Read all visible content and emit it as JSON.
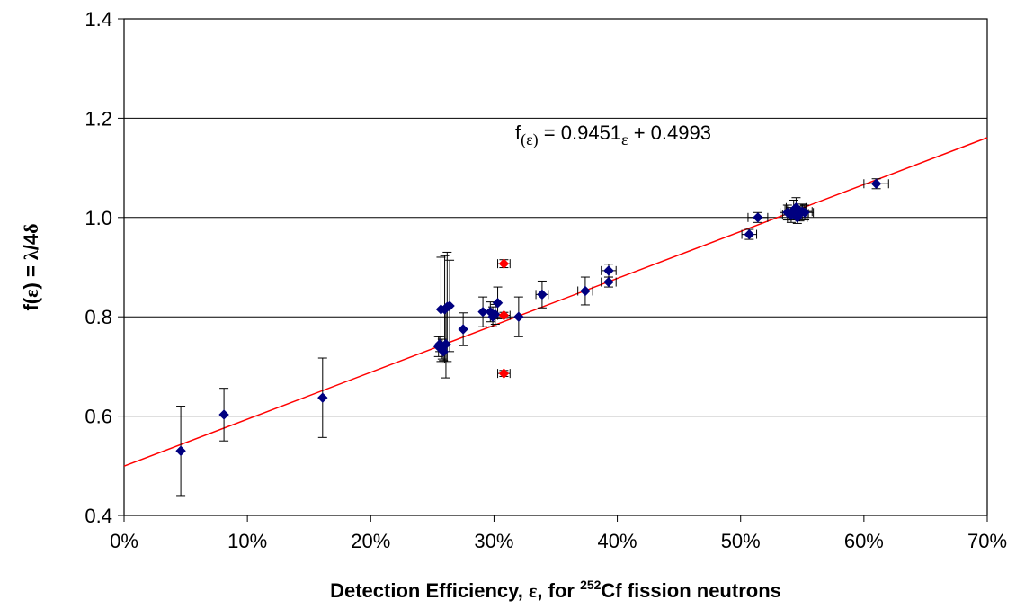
{
  "chart_data": {
    "type": "scatter",
    "title": "",
    "xlabel_parts": {
      "pre": "Detection Efficiency, ",
      "epsilon": "ε",
      "mid": ", for ",
      "sup": "252",
      "post": "Cf fission neutrons"
    },
    "ylabel_parts": {
      "f": "f(",
      "epsilon": "ε",
      "rest": ") = ",
      "lambda": "λ",
      "div": "/4",
      "delta": "δ"
    },
    "equation_parts": {
      "f": "f",
      "sub": "(ε)",
      "mid": " = 0.9451",
      "eps": "ε",
      "end": " + 0.4993"
    },
    "xlim": [
      0,
      0.7
    ],
    "ylim": [
      0.4,
      1.4
    ],
    "x_ticks": [
      0,
      0.1,
      0.2,
      0.3,
      0.4,
      0.5,
      0.6,
      0.7
    ],
    "x_tick_labels": [
      "0%",
      "10%",
      "20%",
      "30%",
      "40%",
      "50%",
      "60%",
      "70%"
    ],
    "y_ticks": [
      0.4,
      0.6,
      0.8,
      1.0,
      1.2,
      1.4
    ],
    "y_tick_labels": [
      "0.4",
      "0.6",
      "0.8",
      "1.0",
      "1.2",
      "1.4"
    ],
    "grid": "horizontal",
    "fit": {
      "slope": 0.9451,
      "intercept": 0.4993,
      "color": "#ff0000"
    },
    "series": [
      {
        "color": "#000080",
        "points": [
          {
            "x": 0.046,
            "y": 0.53,
            "yerr": 0.09
          },
          {
            "x": 0.081,
            "y": 0.603,
            "yerr": 0.053
          },
          {
            "x": 0.161,
            "y": 0.637,
            "yerr": 0.08
          },
          {
            "x": 0.255,
            "y": 0.74,
            "yerr": 0.02
          },
          {
            "x": 0.256,
            "y": 0.745,
            "yerr": 0.015
          },
          {
            "x": 0.257,
            "y": 0.815,
            "yerr": 0.105
          },
          {
            "x": 0.258,
            "y": 0.735,
            "yerr": 0.02
          },
          {
            "x": 0.259,
            "y": 0.73,
            "yerr": 0.018
          },
          {
            "x": 0.26,
            "y": 0.815,
            "yerr": 0.108
          },
          {
            "x": 0.261,
            "y": 0.745,
            "yerr": 0.068
          },
          {
            "x": 0.262,
            "y": 0.82,
            "yerr": 0.11
          },
          {
            "x": 0.264,
            "y": 0.822,
            "yerr": 0.092
          },
          {
            "x": 0.275,
            "y": 0.775,
            "yerr": 0.033
          },
          {
            "x": 0.291,
            "y": 0.81,
            "yerr": 0.03
          },
          {
            "x": 0.297,
            "y": 0.81,
            "yerr": 0.02
          },
          {
            "x": 0.299,
            "y": 0.8,
            "yerr": 0.02
          },
          {
            "x": 0.301,
            "y": 0.805,
            "yerr": 0.02
          },
          {
            "x": 0.303,
            "y": 0.828,
            "yerr": 0.032
          },
          {
            "x": 0.32,
            "y": 0.8,
            "yerr": 0.04
          },
          {
            "x": 0.339,
            "y": 0.845,
            "yerr": 0.027,
            "xerr": 0.005
          },
          {
            "x": 0.374,
            "y": 0.852,
            "yerr": 0.028,
            "xerr": 0.006
          },
          {
            "x": 0.393,
            "y": 0.87,
            "yerr": 0.01,
            "xerr": 0.006
          },
          {
            "x": 0.393,
            "y": 0.893,
            "yerr": 0.013,
            "xerr": 0.006
          },
          {
            "x": 0.507,
            "y": 0.966,
            "yerr": 0.01,
            "xerr": 0.006
          },
          {
            "x": 0.514,
            "y": 1.0,
            "yerr": 0.01,
            "xerr": 0.008
          },
          {
            "x": 0.538,
            "y": 1.01,
            "yerr": 0.015,
            "xerr": 0.006
          },
          {
            "x": 0.541,
            "y": 1.005,
            "yerr": 0.015,
            "xerr": 0.007
          },
          {
            "x": 0.543,
            "y": 1.015,
            "yerr": 0.02,
            "xerr": 0.007
          },
          {
            "x": 0.545,
            "y": 1.02,
            "yerr": 0.02,
            "xerr": 0.008
          },
          {
            "x": 0.546,
            "y": 1.0,
            "yerr": 0.012,
            "xerr": 0.008
          },
          {
            "x": 0.548,
            "y": 1.008,
            "yerr": 0.015,
            "xerr": 0.007
          },
          {
            "x": 0.55,
            "y": 1.012,
            "yerr": 0.015,
            "xerr": 0.008
          },
          {
            "x": 0.552,
            "y": 1.01,
            "yerr": 0.015,
            "xerr": 0.007
          },
          {
            "x": 0.61,
            "y": 1.068,
            "yerr": 0.01,
            "xerr": 0.01
          }
        ]
      },
      {
        "color": "#ff0000",
        "points": [
          {
            "x": 0.308,
            "y": 0.907,
            "yerr": 0.008,
            "xerr": 0.005
          },
          {
            "x": 0.308,
            "y": 0.803,
            "yerr": 0.006,
            "xerr": 0.005
          },
          {
            "x": 0.308,
            "y": 0.686,
            "yerr": 0.006,
            "xerr": 0.005
          }
        ]
      }
    ]
  }
}
